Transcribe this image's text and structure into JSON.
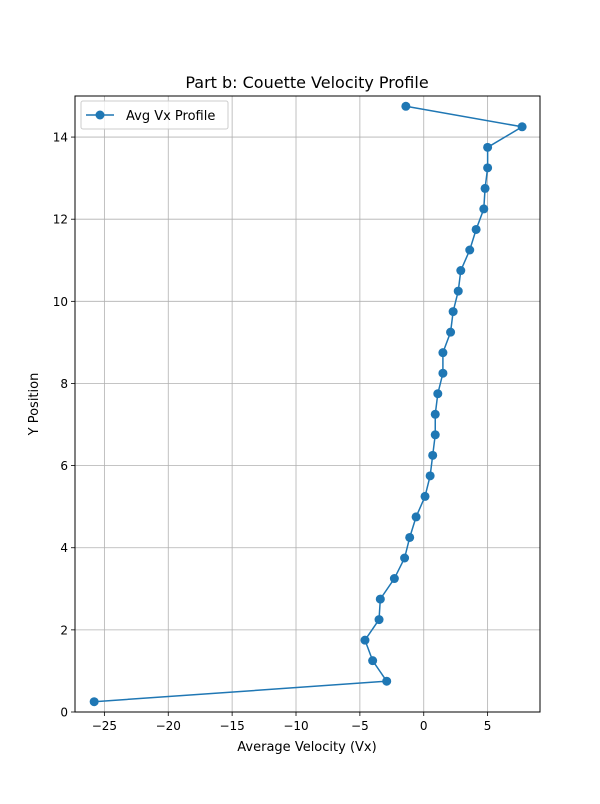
{
  "chart_data": {
    "type": "line",
    "title": "Part b: Couette Velocity Profile",
    "xlabel": "Average Velocity (Vx)",
    "ylabel": "Y Position",
    "xlim": [
      -27.3,
      9.1
    ],
    "ylim": [
      0,
      15.0
    ],
    "xticks": [
      -25,
      -20,
      -15,
      -10,
      -5,
      0,
      5
    ],
    "xtick_labels": [
      "−25",
      "−20",
      "−15",
      "−10",
      "−5",
      "0",
      "5"
    ],
    "yticks": [
      0,
      2,
      4,
      6,
      8,
      10,
      12,
      14
    ],
    "ytick_labels": [
      "0",
      "2",
      "4",
      "6",
      "8",
      "10",
      "12",
      "14"
    ],
    "grid": true,
    "legend_position": "top-left",
    "series_color": "#1f77b4",
    "series": [
      {
        "name": "Avg Vx Profile",
        "marker": "circle",
        "x": [
          -25.8,
          -2.9,
          -4.0,
          -4.6,
          -3.5,
          -3.4,
          -2.3,
          -1.5,
          -1.1,
          -0.6,
          0.1,
          0.5,
          0.7,
          0.9,
          0.9,
          1.1,
          1.5,
          1.5,
          2.1,
          2.3,
          2.7,
          2.9,
          3.6,
          4.1,
          4.7,
          4.8,
          5.0,
          5.0,
          7.7,
          -1.4
        ],
        "y": [
          0.25,
          0.75,
          1.25,
          1.75,
          2.25,
          2.75,
          3.25,
          3.75,
          4.25,
          4.75,
          5.25,
          5.75,
          6.25,
          6.75,
          7.25,
          7.75,
          8.25,
          8.75,
          9.25,
          9.75,
          10.25,
          10.75,
          11.25,
          11.75,
          12.25,
          12.75,
          13.25,
          13.75,
          14.25,
          14.75
        ]
      }
    ]
  }
}
